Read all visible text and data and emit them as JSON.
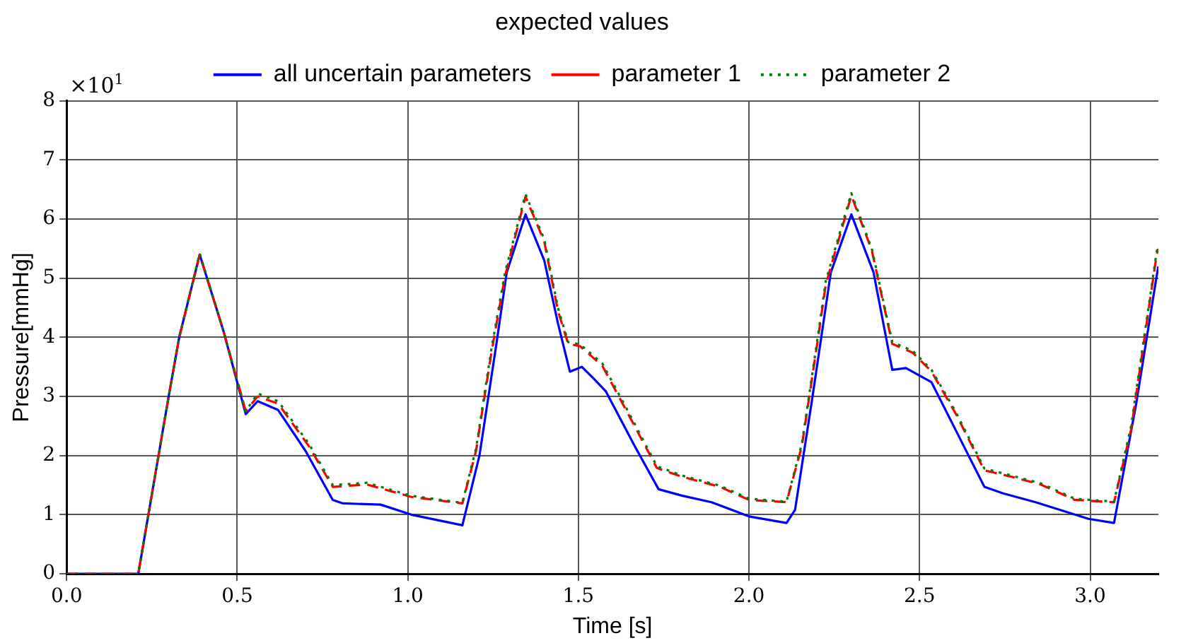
{
  "chart_data": {
    "type": "line",
    "title": "expected values",
    "xlabel": "Time [s]",
    "ylabel": "Pressure[mmHg]",
    "annotations": [
      "×10$^{1}$"
    ],
    "xlim": [
      0,
      3.2
    ],
    "xticks": [
      {
        "value": 0,
        "label": "0.0"
      },
      {
        "value": 0.5,
        "label": "0.5"
      },
      {
        "value": 1,
        "label": "1.0"
      },
      {
        "value": 1.5,
        "label": "1.5"
      },
      {
        "value": 2,
        "label": "2.0"
      },
      {
        "value": 2.5,
        "label": "2.5"
      },
      {
        "value": 3,
        "label": "3.0"
      }
    ],
    "ylim": [
      0,
      8
    ],
    "yticks": [
      0,
      1,
      2,
      3,
      4,
      5,
      6,
      7,
      8
    ],
    "grid": true,
    "legend": "top",
    "marker": "none",
    "series": [
      {
        "name": "all uncertain parameters",
        "color": "#0000ff",
        "line_style": "solid",
        "x": [
          0,
          0.21,
          0.3,
          0.33,
          0.39,
          0.46,
          0.525,
          0.56,
          0.62,
          0.7,
          0.78,
          0.81,
          0.92,
          1.01,
          1.16,
          1.21,
          1.26,
          1.29,
          1.345,
          1.4,
          1.44,
          1.475,
          1.51,
          1.545,
          1.58,
          1.665,
          1.735,
          1.805,
          1.89,
          2.0,
          2.11,
          2.135,
          2.185,
          2.24,
          2.3,
          2.365,
          2.42,
          2.46,
          2.535,
          2.605,
          2.69,
          2.745,
          2.84,
          2.995,
          3.07,
          3.135,
          3.195,
          3.2
        ],
        "values": [
          0,
          0,
          3.03,
          4.0,
          5.4,
          4.1,
          2.7,
          2.92,
          2.77,
          2.08,
          1.25,
          1.19,
          1.17,
          1.0,
          0.82,
          2.0,
          3.9,
          5.1,
          6.08,
          5.3,
          4.24,
          3.42,
          3.5,
          3.3,
          3.09,
          2.16,
          1.43,
          1.32,
          1.21,
          0.97,
          0.86,
          1.08,
          2.95,
          5.1,
          6.08,
          5.1,
          3.45,
          3.48,
          3.24,
          2.44,
          1.47,
          1.36,
          1.21,
          0.93,
          0.86,
          2.88,
          5.04,
          5.2
        ]
      },
      {
        "name": "parameter 1",
        "color": "#ff0000",
        "line_style": "dashed",
        "x": [
          0,
          0.21,
          0.3,
          0.33,
          0.39,
          0.46,
          0.525,
          0.56,
          0.62,
          0.71,
          0.78,
          0.88,
          1.01,
          1.16,
          1.2,
          1.245,
          1.285,
          1.345,
          1.4,
          1.44,
          1.47,
          1.505,
          1.57,
          1.65,
          1.73,
          1.805,
          1.915,
          2.0,
          2.11,
          2.155,
          2.2,
          2.225,
          2.3,
          2.36,
          2.42,
          2.48,
          2.535,
          2.605,
          2.69,
          2.77,
          2.855,
          2.955,
          3.07,
          3.12,
          3.195,
          3.2
        ],
        "values": [
          0,
          0,
          3.03,
          4.0,
          5.4,
          4.1,
          2.75,
          3.0,
          2.88,
          2.16,
          1.47,
          1.51,
          1.3,
          1.19,
          2.08,
          3.74,
          5.04,
          6.38,
          5.62,
          4.45,
          3.89,
          3.85,
          3.52,
          2.66,
          1.79,
          1.64,
          1.47,
          1.25,
          1.21,
          2.16,
          3.89,
          4.89,
          6.4,
          5.47,
          3.89,
          3.74,
          3.42,
          2.72,
          1.75,
          1.64,
          1.51,
          1.25,
          1.21,
          2.44,
          5.4,
          5.5
        ]
      },
      {
        "name": "parameter 2",
        "color": "#008000",
        "line_style": "dotted",
        "x": [
          0,
          0.21,
          0.3,
          0.33,
          0.39,
          0.46,
          0.525,
          0.56,
          0.62,
          0.71,
          0.78,
          0.88,
          1.01,
          1.16,
          1.2,
          1.245,
          1.285,
          1.345,
          1.4,
          1.44,
          1.47,
          1.505,
          1.57,
          1.65,
          1.73,
          1.805,
          1.915,
          2.0,
          2.11,
          2.155,
          2.2,
          2.225,
          2.3,
          2.36,
          2.42,
          2.48,
          2.535,
          2.605,
          2.69,
          2.77,
          2.855,
          2.955,
          3.07,
          3.12,
          3.195,
          3.2
        ],
        "values": [
          0,
          0,
          3.03,
          4.0,
          5.42,
          4.1,
          2.75,
          3.05,
          2.92,
          2.2,
          1.5,
          1.54,
          1.32,
          1.2,
          2.12,
          3.8,
          5.1,
          6.42,
          5.66,
          4.5,
          3.92,
          3.88,
          3.56,
          2.7,
          1.82,
          1.66,
          1.49,
          1.27,
          1.22,
          2.2,
          3.94,
          4.95,
          6.44,
          5.5,
          3.92,
          3.77,
          3.45,
          2.75,
          1.78,
          1.66,
          1.53,
          1.27,
          1.22,
          2.5,
          5.45,
          5.55
        ]
      }
    ]
  }
}
